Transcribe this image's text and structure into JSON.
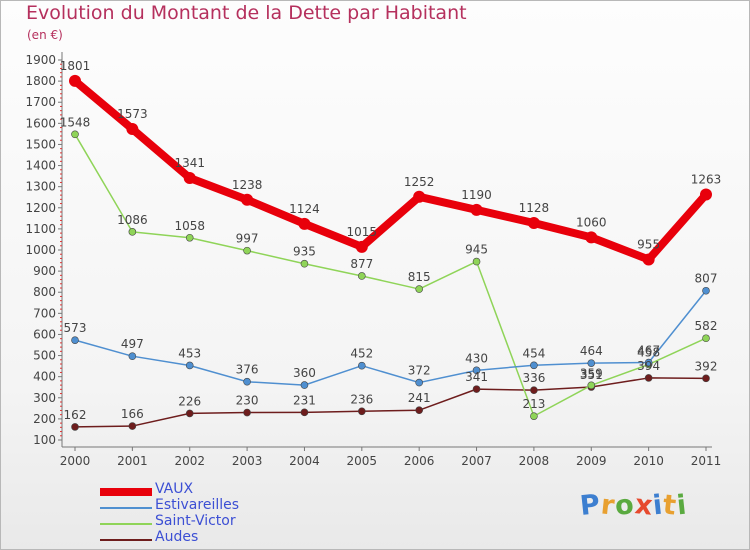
{
  "title": "Evolution du Montant de la Dette par Habitant",
  "subtitle": "(en €)",
  "logo_letters": [
    {
      "ch": "P",
      "color": "#3d7fd0"
    },
    {
      "ch": "r",
      "color": "#e8a030"
    },
    {
      "ch": "o",
      "color": "#5aaa40"
    },
    {
      "ch": "x",
      "color": "#e64a2e"
    },
    {
      "ch": "i",
      "color": "#3d7fd0"
    },
    {
      "ch": "t",
      "color": "#e8a030"
    },
    {
      "ch": "i",
      "color": "#5aaa40"
    }
  ],
  "chart_data": {
    "type": "line",
    "x": [
      "2000",
      "2001",
      "2002",
      "2003",
      "2004",
      "2005",
      "2006",
      "2007",
      "2008",
      "2009",
      "2010",
      "2011"
    ],
    "ylim": [
      100,
      1900
    ],
    "yticks": [
      100,
      200,
      300,
      400,
      500,
      600,
      700,
      800,
      900,
      1000,
      1100,
      1200,
      1300,
      1400,
      1500,
      1600,
      1700,
      1800,
      1900
    ],
    "grid": false,
    "legend_position": "bottom-left",
    "series": [
      {
        "name": "VAUX",
        "color": "#e8000b",
        "values": [
          1801,
          1573,
          1341,
          1238,
          1124,
          1015,
          1252,
          1190,
          1128,
          1060,
          955,
          1263
        ]
      },
      {
        "name": "Estivareilles",
        "color": "#4f8fd0",
        "values": [
          573,
          497,
          453,
          376,
          360,
          452,
          372,
          430,
          454,
          464,
          467,
          807
        ]
      },
      {
        "name": "Saint-Victor",
        "color": "#8fd458",
        "values": [
          1548,
          1086,
          1058,
          997,
          935,
          877,
          815,
          945,
          213,
          359,
          458,
          582
        ]
      },
      {
        "name": "Audes",
        "color": "#6e1d1d",
        "values": [
          162,
          166,
          226,
          230,
          231,
          236,
          241,
          341,
          336,
          351,
          394,
          392
        ]
      }
    ]
  }
}
